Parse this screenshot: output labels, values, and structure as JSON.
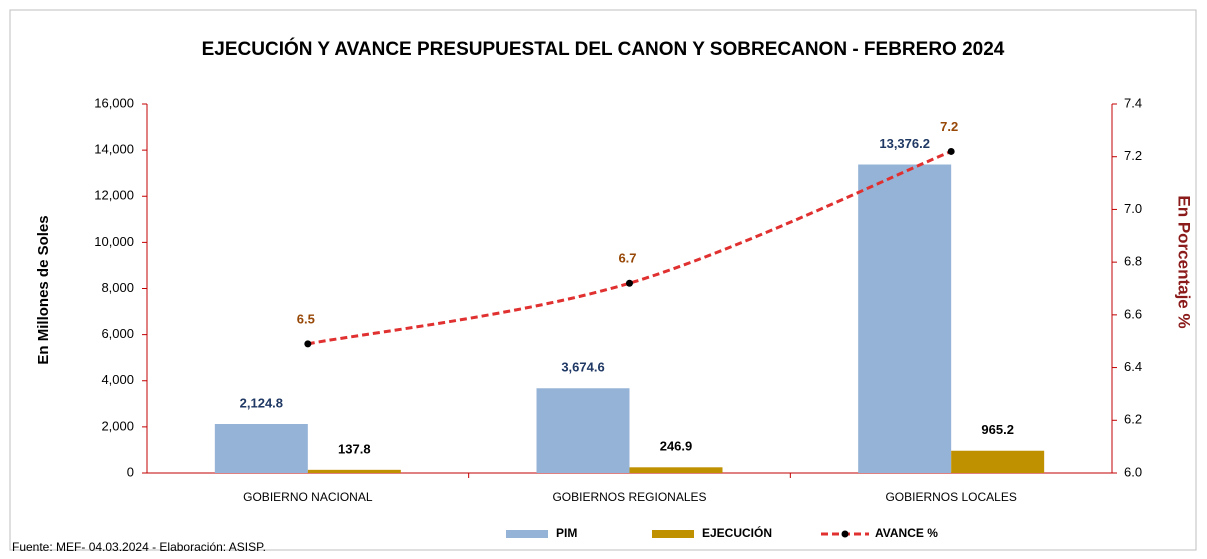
{
  "chart_data": {
    "type": "bar",
    "title": "EJECUCIÓN Y AVANCE  PRESUPUESTAL DEL CANON Y SOBRECANON - FEBRERO 2024",
    "y_label": "En Millones de Soles",
    "y2_label": "En Porcentaje %",
    "source": "Fuente:  MEF-  04.03.2024 - Elaboración: ASISP.",
    "categories": [
      "GOBIERNO NACIONAL",
      "GOBIERNOS REGIONALES",
      "GOBIERNOS LOCALES"
    ],
    "series": [
      {
        "name": "PIM",
        "type": "bar",
        "color": "#95b3d7",
        "values": [
          2124.8,
          3674.6,
          13376.2
        ],
        "value_labels": [
          "2,124.8",
          "3,674.6",
          "13,376.2"
        ],
        "label_color": "#1f3864"
      },
      {
        "name": "EJECUCIÓN",
        "type": "bar",
        "color": "#bf9000",
        "values": [
          137.8,
          246.9,
          965.2
        ],
        "label_color": "#000000"
      },
      {
        "name": "AVANCE %",
        "type": "line",
        "axis": "y2",
        "color": "#e03030",
        "marker_color": "#000000",
        "values": [
          6.49,
          6.72,
          7.22
        ],
        "value_labels": [
          "6.5",
          "6.7",
          "7.2"
        ],
        "label_color": "#974706"
      }
    ],
    "ylim": [
      0,
      16000
    ],
    "yticks": [
      0,
      {
        "value": 2000,
        "label": "2,000"
      },
      {
        "value": 4000,
        "label": "4,000"
      },
      {
        "value": 6000,
        "label": "6,000"
      },
      {
        "value": 8000,
        "label": "8,000"
      },
      {
        "value": 10000,
        "label": "10,000"
      },
      {
        "value": 12000,
        "label": "12,000"
      },
      {
        "value": 14000,
        "label": "14,000"
      },
      {
        "value": 16000,
        "label": "16,000"
      }
    ],
    "y2lim": [
      6,
      7.4
    ],
    "y2ticks": [
      {
        "value": 6,
        "label": "6.0"
      },
      6.2,
      6.4,
      6.6,
      6.8,
      {
        "value": 7,
        "label": "7.0"
      },
      7.2,
      7.4
    ],
    "axis_color": "#c00000",
    "grid": false
  }
}
